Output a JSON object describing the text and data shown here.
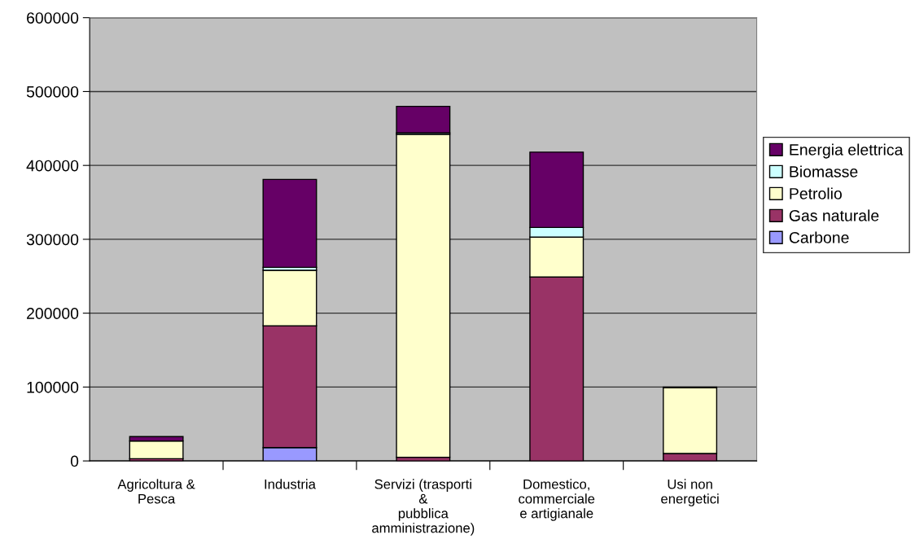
{
  "chart_data": {
    "type": "bar",
    "stacked": true,
    "categories": [
      "Agricoltura &\nPesca",
      "Industria",
      "Servizi (trasporti\n&\npubblica\namministrazione)",
      "Domestico,\ncommerciale\ne artigianale",
      "Usi non\nenergetici"
    ],
    "series": [
      {
        "name": "Carbone",
        "color": "#9999ff",
        "values": [
          0,
          18000,
          0,
          0,
          0
        ]
      },
      {
        "name": "Gas naturale",
        "color": "#993366",
        "values": [
          3000,
          165000,
          5000,
          249000,
          10000
        ]
      },
      {
        "name": "Petrolio",
        "color": "#ffffcc",
        "values": [
          24000,
          75000,
          437000,
          54000,
          89000
        ]
      },
      {
        "name": "Biomasse",
        "color": "#ccffff",
        "values": [
          null,
          4000,
          2000,
          13000,
          0
        ]
      },
      {
        "name": "Energia elettrica",
        "color": "#660066",
        "values": [
          6000,
          119000,
          36000,
          102000,
          1000
        ]
      }
    ],
    "ylim": [
      0,
      600000
    ],
    "yticks": [
      0,
      100000,
      200000,
      300000,
      400000,
      500000,
      600000
    ],
    "grid": "y",
    "legend": "right"
  }
}
